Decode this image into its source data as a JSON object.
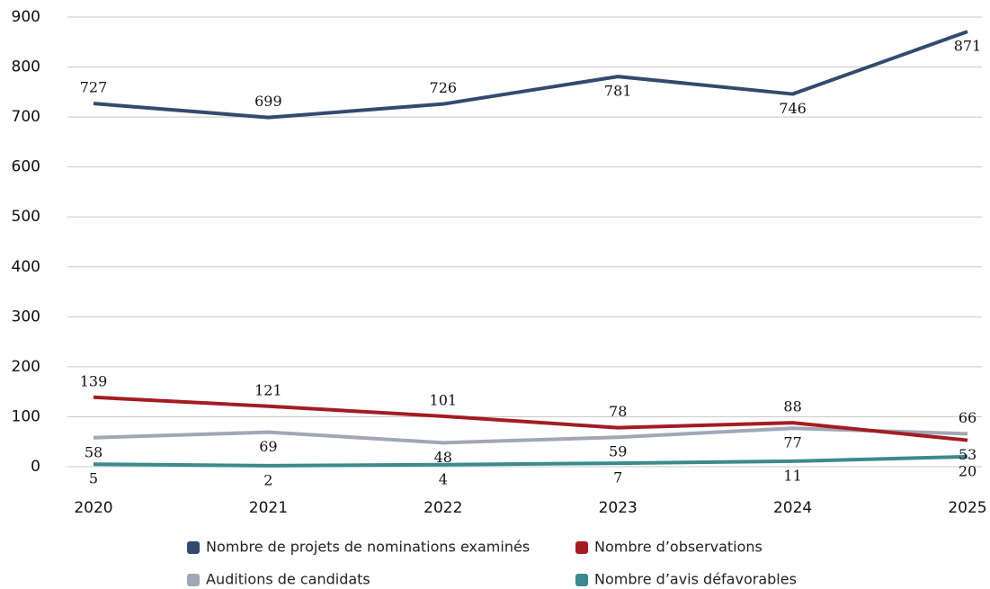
{
  "chart_data": {
    "type": "line",
    "categories": [
      "2020",
      "2021",
      "2022",
      "2023",
      "2024",
      "2025"
    ],
    "series": [
      {
        "name": "Nombre de projets de nominations examinés",
        "color": "#334a6d",
        "values": [
          727,
          699,
          726,
          781,
          746,
          871
        ]
      },
      {
        "name": "Nombre d’observations",
        "color": "#a31c22",
        "values": [
          139,
          121,
          101,
          78,
          88,
          53
        ]
      },
      {
        "name": "Auditions de candidats",
        "color": "#a0a7b5",
        "values": [
          58,
          69,
          48,
          59,
          77,
          66
        ]
      },
      {
        "name": "Nombre d’avis défavorables",
        "color": "#3b8a8d",
        "values": [
          5,
          2,
          4,
          7,
          11,
          20
        ]
      }
    ],
    "ylim": [
      0,
      900
    ],
    "yticks": [
      0,
      100,
      200,
      300,
      400,
      500,
      600,
      700,
      800,
      900
    ],
    "grid": true,
    "legend": "bottom"
  }
}
